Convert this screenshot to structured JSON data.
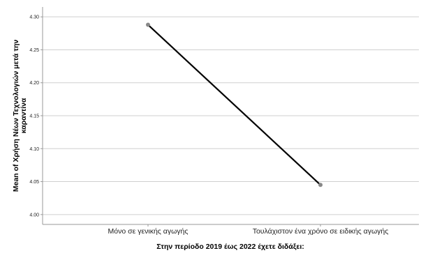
{
  "chart_data": {
    "type": "line",
    "title": "",
    "xlabel": "Στην περίοδο 2019 έως 2022 έχετε διδάξει:",
    "ylabel_lines": [
      "Mean of Χρήση Νέων Τεχνολογιών μετά την",
      "καραντίνα"
    ],
    "categories": [
      "Μόνο σε γενικής αγωγής",
      "Τουλάχιστον ένα χρόνο σε ειδικής αγωγής"
    ],
    "series": [
      {
        "values": [
          4.288,
          4.045
        ]
      }
    ],
    "ylim": [
      3.985,
      4.315
    ],
    "yticks": [
      4.0,
      4.05,
      4.1,
      4.15,
      4.2,
      4.25,
      4.3
    ],
    "ytick_labels": [
      "4.00",
      "4.05",
      "4.10",
      "4.15",
      "4.20",
      "4.25",
      "4.30"
    ],
    "grid": true,
    "colors": {
      "line": "#000000",
      "marker": "#888888",
      "grid": "#cfcfcf",
      "axis": "#999999"
    }
  }
}
